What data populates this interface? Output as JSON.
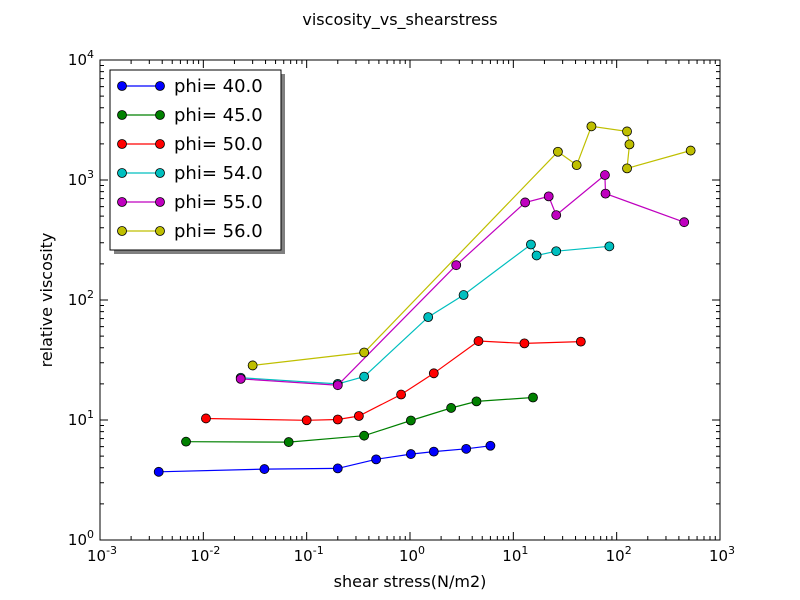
{
  "chart_data": {
    "type": "line",
    "title": "viscosity_vs_shearstress",
    "xlabel": "shear stress(N/m2)",
    "ylabel": "relative viscosity",
    "xscale": "log",
    "yscale": "log",
    "xlim": [
      0.001,
      1000
    ],
    "ylim": [
      1,
      10000
    ],
    "x_ticks": [
      {
        "value": 0.001,
        "base": "10",
        "exp": "-3"
      },
      {
        "value": 0.01,
        "base": "10",
        "exp": "-2"
      },
      {
        "value": 0.1,
        "base": "10",
        "exp": "-1"
      },
      {
        "value": 1,
        "base": "10",
        "exp": "0"
      },
      {
        "value": 10,
        "base": "10",
        "exp": "1"
      },
      {
        "value": 100,
        "base": "10",
        "exp": "2"
      },
      {
        "value": 1000,
        "base": "10",
        "exp": "3"
      }
    ],
    "y_ticks": [
      {
        "value": 1,
        "base": "10",
        "exp": "0"
      },
      {
        "value": 10,
        "base": "10",
        "exp": "1"
      },
      {
        "value": 100,
        "base": "10",
        "exp": "2"
      },
      {
        "value": 1000,
        "base": "10",
        "exp": "3"
      },
      {
        "value": 10000,
        "base": "10",
        "exp": "4"
      }
    ],
    "grid": false,
    "legend_position": "top-left",
    "series": [
      {
        "name": "phi= 40.0",
        "color": "#0000ff",
        "points": [
          [
            0.0037,
            3.7
          ],
          [
            0.039,
            3.9
          ],
          [
            0.2,
            3.95
          ],
          [
            0.47,
            4.7
          ],
          [
            1.02,
            5.2
          ],
          [
            1.7,
            5.45
          ],
          [
            3.5,
            5.75
          ],
          [
            6.0,
            6.1
          ]
        ]
      },
      {
        "name": "phi= 45.0",
        "color": "#008000",
        "points": [
          [
            0.0068,
            6.6
          ],
          [
            0.067,
            6.55
          ],
          [
            0.36,
            7.4
          ],
          [
            1.02,
            9.9
          ],
          [
            2.5,
            12.6
          ],
          [
            4.4,
            14.3
          ],
          [
            15.5,
            15.4
          ]
        ]
      },
      {
        "name": "phi= 50.0",
        "color": "#ff0000",
        "points": [
          [
            0.0106,
            10.3
          ],
          [
            0.1,
            9.95
          ],
          [
            0.2,
            10.1
          ],
          [
            0.32,
            10.8
          ],
          [
            0.82,
            16.3
          ],
          [
            1.7,
            24.5
          ],
          [
            4.6,
            45.5
          ],
          [
            12.8,
            43.5
          ],
          [
            45.0,
            45.0
          ]
        ]
      },
      {
        "name": "phi= 54.0",
        "color": "#00bfbf",
        "points": [
          [
            0.023,
            22.5
          ],
          [
            0.2,
            20.0
          ],
          [
            0.36,
            23.0
          ],
          [
            1.5,
            72.0
          ],
          [
            3.3,
            110.0
          ],
          [
            14.8,
            290.0
          ],
          [
            16.8,
            235.0
          ],
          [
            26.0,
            255.0
          ],
          [
            85.0,
            280.0
          ]
        ]
      },
      {
        "name": "phi= 55.0",
        "color": "#bf00bf",
        "points": [
          [
            0.023,
            22.0
          ],
          [
            0.2,
            19.5
          ],
          [
            2.8,
            195.0
          ],
          [
            13.0,
            650.0
          ],
          [
            22.0,
            730.0
          ],
          [
            26.0,
            510.0
          ],
          [
            77.0,
            1100.0
          ],
          [
            78.0,
            770.0
          ],
          [
            450.0,
            445.0
          ]
        ]
      },
      {
        "name": "phi= 56.0",
        "color": "#bfbf00",
        "points": [
          [
            0.03,
            28.5
          ],
          [
            0.36,
            36.5
          ],
          [
            27.0,
            1720.0
          ],
          [
            41.0,
            1330.0
          ],
          [
            57.0,
            2800.0
          ],
          [
            126.0,
            2540.0
          ],
          [
            133.0,
            1980.0
          ],
          [
            126.0,
            1250.0
          ],
          [
            520.0,
            1760.0
          ]
        ]
      }
    ]
  }
}
